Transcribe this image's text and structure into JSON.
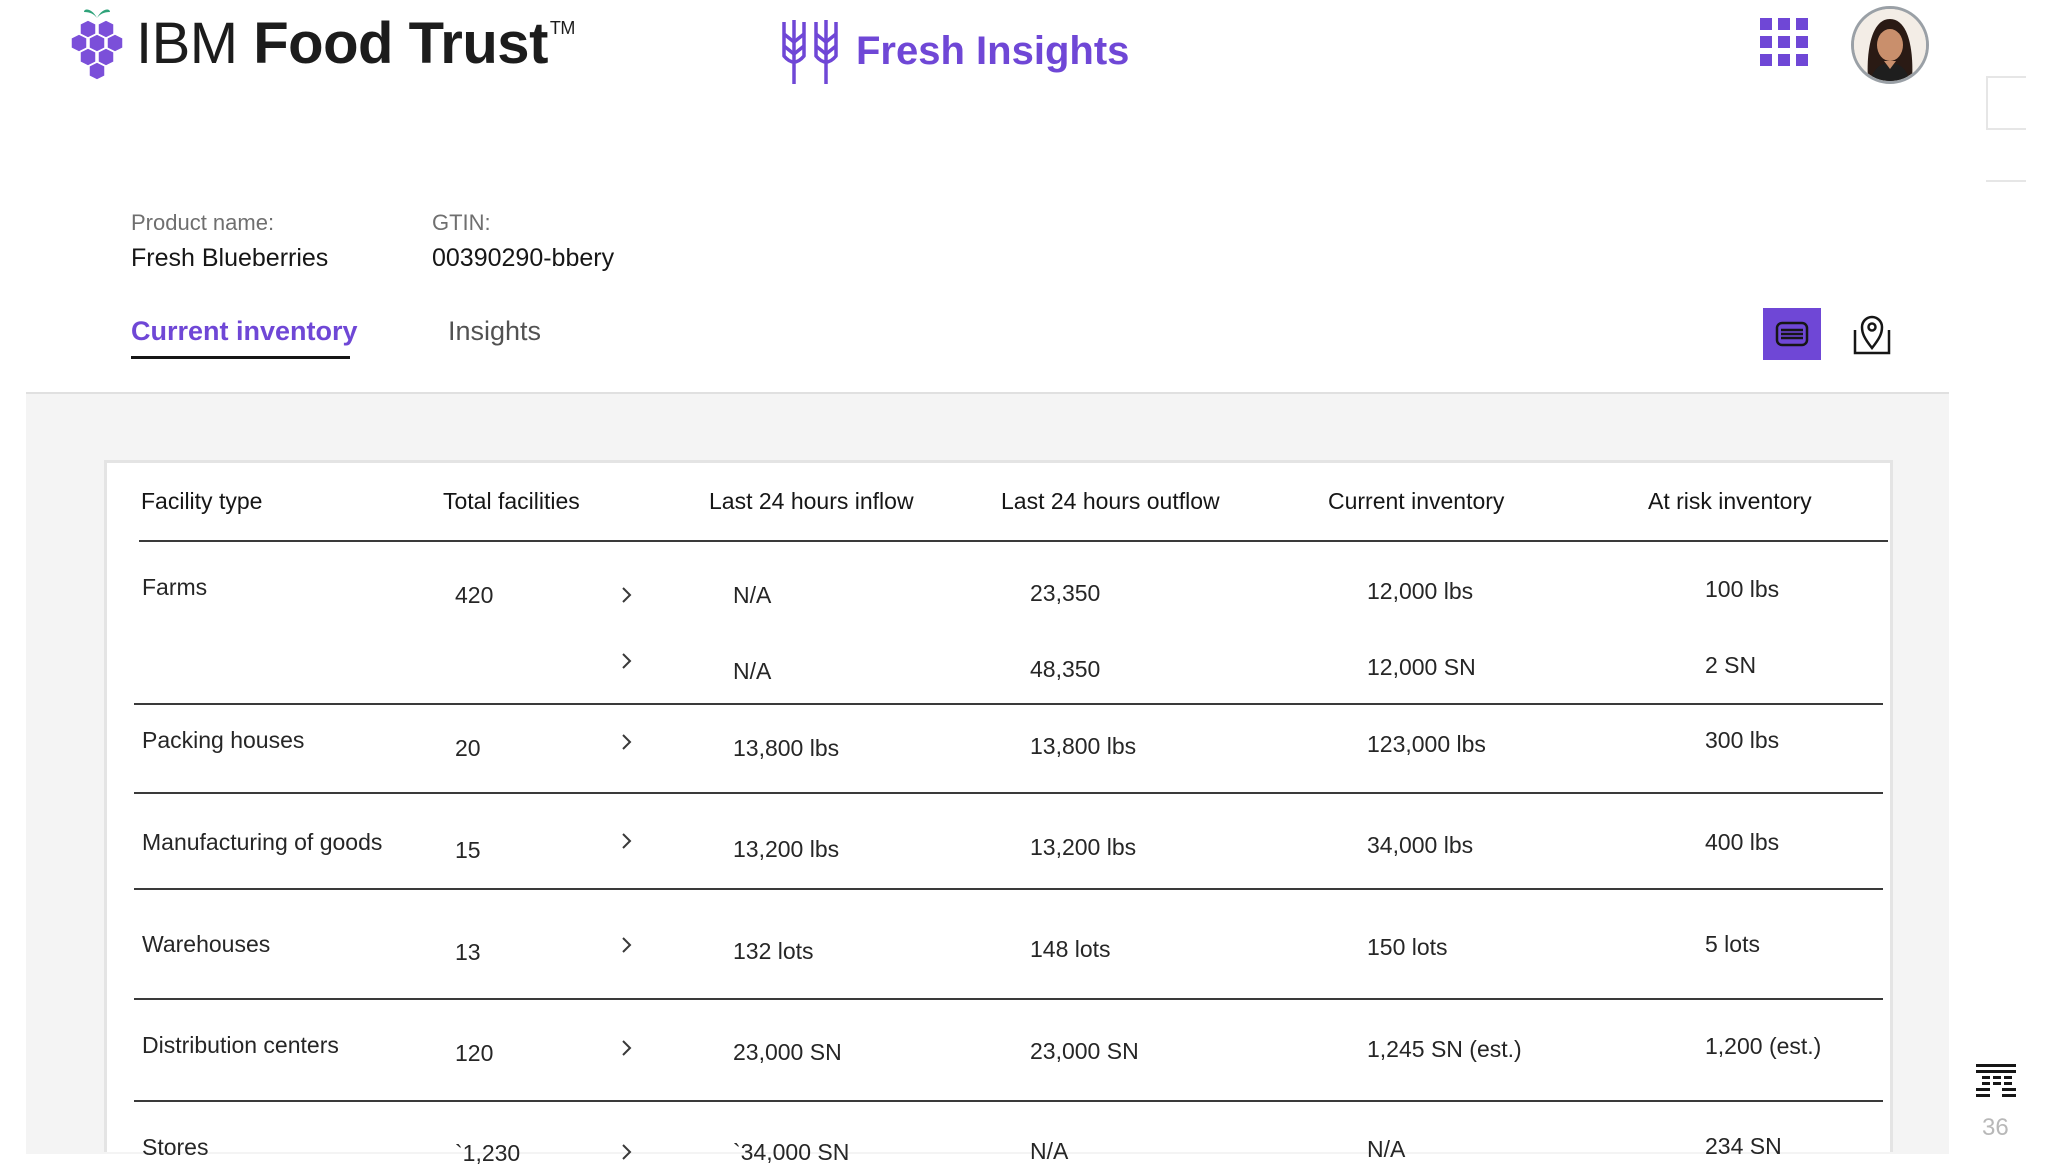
{
  "header": {
    "brand_part1": "IBM",
    "brand_part2": "Food Trust",
    "brand_tm": "TM",
    "app_name": "Fresh Insights",
    "accent_color": "#6f47d6"
  },
  "product": {
    "name_label": "Product name:",
    "name_value": "Fresh Blueberries",
    "gtin_label": "GTIN:",
    "gtin_value": "00390290-bbery"
  },
  "tabs": {
    "current": "Current inventory",
    "insights": "Insights"
  },
  "table": {
    "headers": [
      "Facility type",
      "Total facilities",
      "Last 24 hours inflow",
      "Last 24 hours outflow",
      "Current inventory",
      "At risk inventory"
    ],
    "rows": [
      {
        "facility": "Farms",
        "total": "420",
        "inflow": "N/A",
        "outflow": "23,350",
        "current": "12,000 lbs",
        "risk": "100 lbs"
      },
      {
        "facility": "",
        "total": "",
        "inflow": "N/A",
        "outflow": "48,350",
        "current": "12,000 SN",
        "risk": "2 SN"
      },
      {
        "facility": "Packing houses",
        "total": "20",
        "inflow": "13,800 lbs",
        "outflow": "13,800 lbs",
        "current": "123,000 lbs",
        "risk": "300 lbs"
      },
      {
        "facility": "Manufacturing of goods",
        "total": "15",
        "inflow": "13,200 lbs",
        "outflow": "13,200 lbs",
        "current": "34,000 lbs",
        "risk": "400 lbs"
      },
      {
        "facility": "Warehouses",
        "total": "13",
        "inflow": "132 lots",
        "outflow": "148  lots",
        "current": "150 lots",
        "risk": "5 lots"
      },
      {
        "facility": "Distribution centers",
        "total": "120",
        "inflow": "23,000 SN",
        "outflow": "23,000 SN",
        "current": "1,245 SN (est.)",
        "risk": "1,200 (est.)"
      },
      {
        "facility": "Stores",
        "total": "`1,230",
        "inflow": "`34,000 SN",
        "outflow": "N/A",
        "current": "N/A",
        "risk": "234 SN"
      }
    ]
  },
  "footer": {
    "page_number": "36"
  }
}
